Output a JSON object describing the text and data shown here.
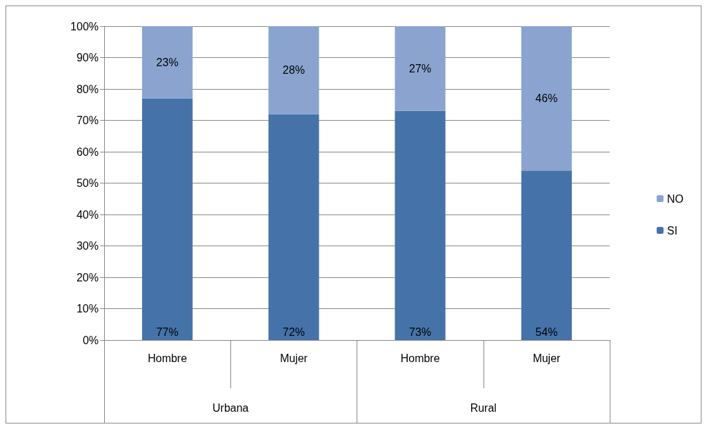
{
  "chart_data": {
    "type": "bar",
    "stacked": true,
    "categories": [
      "Hombre",
      "Mujer",
      "Hombre",
      "Mujer"
    ],
    "annotations": [
      "Urbana",
      "Rural"
    ],
    "series": [
      {
        "name": "SI",
        "color": "#4573a9",
        "values": [
          77,
          72,
          73,
          54
        ],
        "value_labels": [
          "77%",
          "72%",
          "73%",
          "54%"
        ]
      },
      {
        "name": "NO",
        "color": "#8aa4cf",
        "values": [
          23,
          28,
          27,
          46
        ],
        "value_labels": [
          "23%",
          "28%",
          "27%",
          "46%"
        ]
      }
    ],
    "ylim": [
      0,
      100
    ],
    "yticks": [
      {
        "value": 0,
        "label": "0%"
      },
      {
        "value": 10,
        "label": "10%"
      },
      {
        "value": 20,
        "label": "20%"
      },
      {
        "value": 30,
        "label": "30%"
      },
      {
        "value": 40,
        "label": "40%"
      },
      {
        "value": 50,
        "label": "50%"
      },
      {
        "value": 60,
        "label": "60%"
      },
      {
        "value": 70,
        "label": "70%"
      },
      {
        "value": 80,
        "label": "80%"
      },
      {
        "value": 90,
        "label": "90%"
      },
      {
        "value": 100,
        "label": "100%"
      }
    ],
    "grid": "y",
    "legend": "right"
  }
}
